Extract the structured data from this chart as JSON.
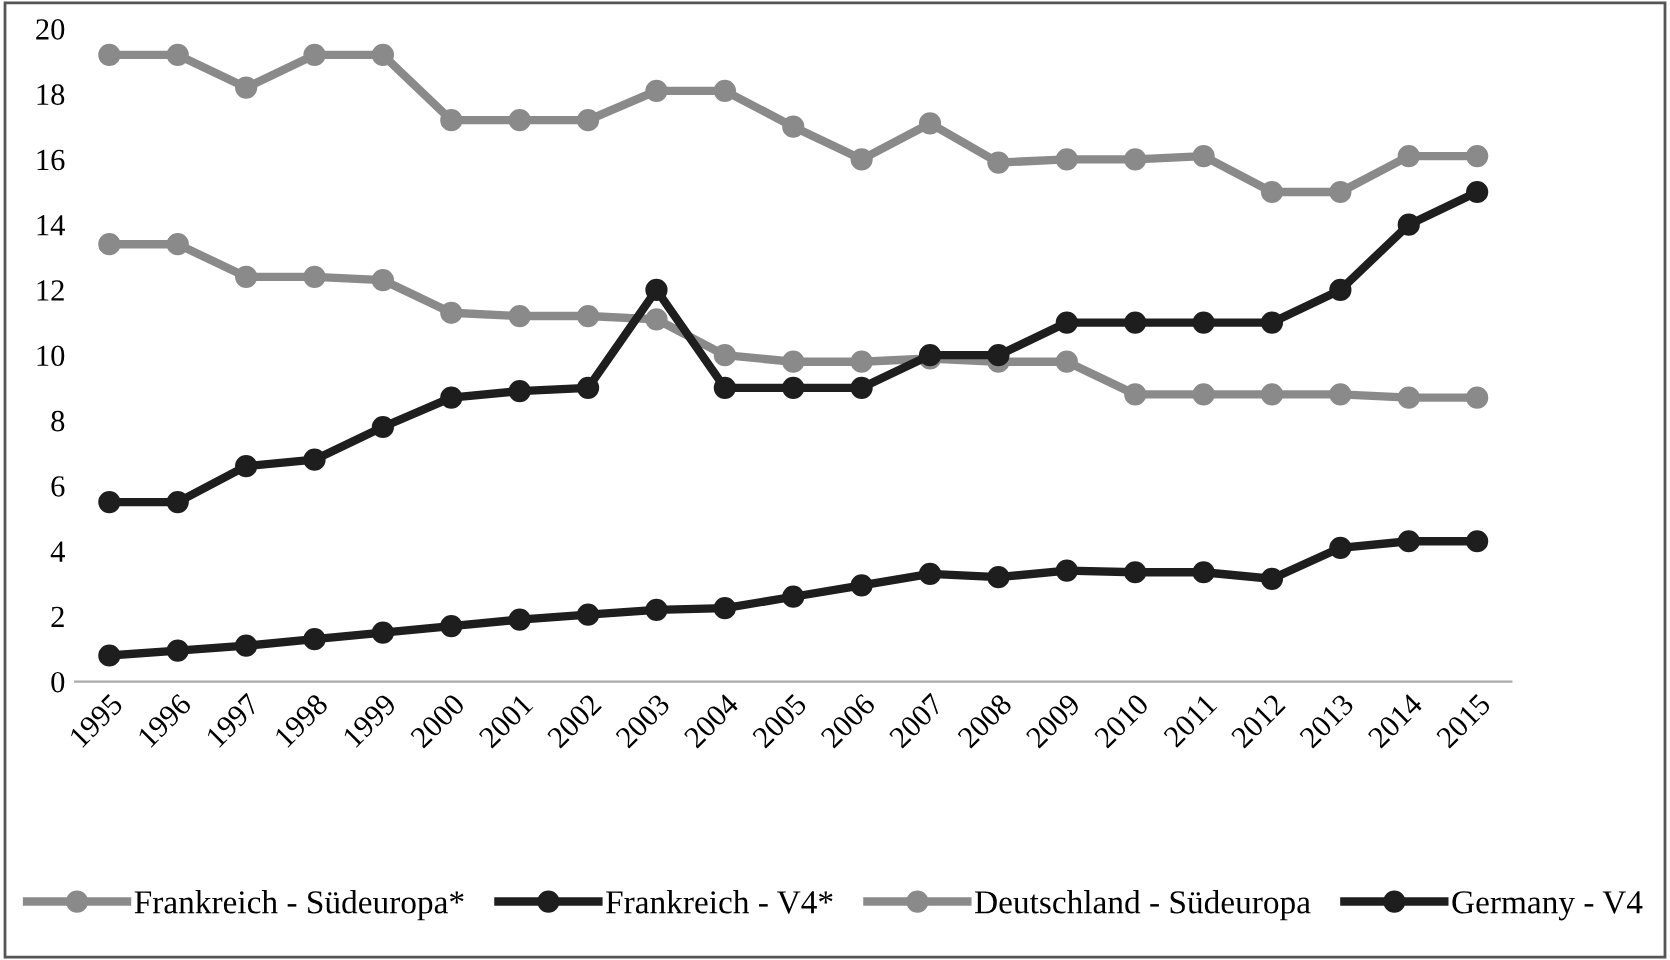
{
  "chart_data": {
    "type": "line",
    "categories": [
      "1995",
      "1996",
      "1997",
      "1998",
      "1999",
      "2000",
      "2001",
      "2002",
      "2003",
      "2004",
      "2005",
      "2006",
      "2007",
      "2008",
      "2009",
      "2010",
      "2011",
      "2012",
      "2013",
      "2014",
      "2015"
    ],
    "series": [
      {
        "name": "Frankreich - Südeuropa*",
        "color": "#8a8a8a",
        "values": [
          13.4,
          13.4,
          12.4,
          12.4,
          12.3,
          11.3,
          11.2,
          11.2,
          11.1,
          10.0,
          9.8,
          9.8,
          9.9,
          9.8,
          9.8,
          8.8,
          8.8,
          8.8,
          8.8,
          8.7,
          8.7
        ]
      },
      {
        "name": "Frankreich - V4*",
        "color": "#1e1e1e",
        "values": [
          0.8,
          0.95,
          1.1,
          1.3,
          1.5,
          1.7,
          1.9,
          2.05,
          2.2,
          2.25,
          2.6,
          2.95,
          3.3,
          3.2,
          3.4,
          3.35,
          3.35,
          3.15,
          4.1,
          4.3,
          4.3
        ]
      },
      {
        "name": "Deutschland - Südeuropa",
        "color": "#8a8a8a",
        "values": [
          19.2,
          19.2,
          18.2,
          19.2,
          19.2,
          17.2,
          17.2,
          17.2,
          18.1,
          18.1,
          17.0,
          16.0,
          17.1,
          15.9,
          16.0,
          16.0,
          16.1,
          15.0,
          15.0,
          16.1,
          16.1
        ]
      },
      {
        "name": "Germany - V4",
        "color": "#1e1e1e",
        "values": [
          5.5,
          5.5,
          6.6,
          6.8,
          7.8,
          8.7,
          8.9,
          9.0,
          12.0,
          9.0,
          9.0,
          9.0,
          10.0,
          10.0,
          11.0,
          11.0,
          11.0,
          11.0,
          12.0,
          14.0,
          15.0
        ]
      }
    ],
    "ylim": [
      0,
      20
    ],
    "yticks": [
      0,
      2,
      4,
      6,
      8,
      10,
      12,
      14,
      16,
      18,
      20
    ],
    "marker": "circle",
    "line_style": "solid",
    "legend": "bottom",
    "grid": false
  }
}
